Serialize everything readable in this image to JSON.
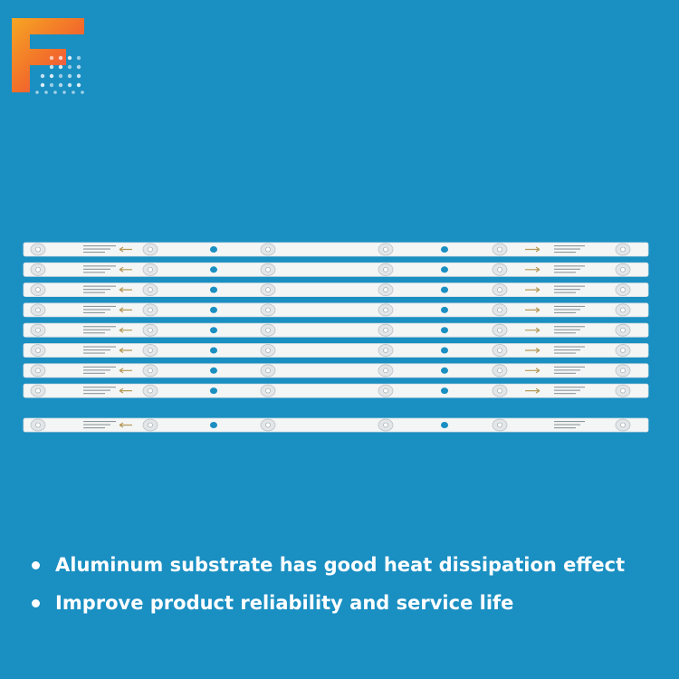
{
  "logo": {
    "icon": "brand-f-icon",
    "colors": [
      "#f26b2b",
      "#f6a623",
      "#e8467c",
      "#ffffff"
    ]
  },
  "product": {
    "name": "LED backlight strips",
    "strip_count": 9,
    "lenses_per_strip": 6,
    "colors": {
      "strip": "#f4f6f6",
      "lens": "#e3e6e8",
      "hole": "#1a8fc2",
      "arrow": "#b59a5a"
    }
  },
  "features": [
    {
      "text": "Aluminum substrate has good heat dissipation effect"
    },
    {
      "text": "Improve product reliability and service life"
    }
  ]
}
